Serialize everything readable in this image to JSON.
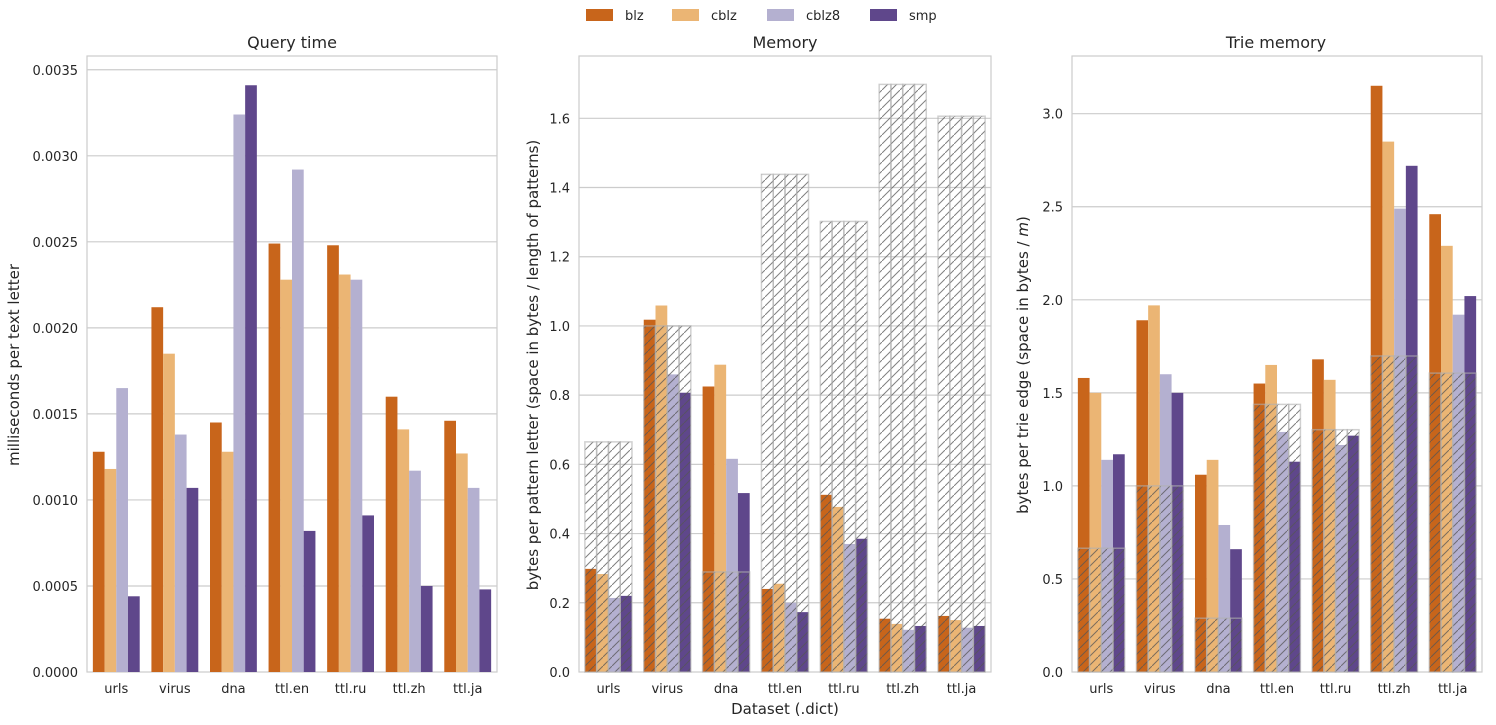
{
  "legend": {
    "items": [
      {
        "name": "blz",
        "color": "#c8651b"
      },
      {
        "name": "cblz",
        "color": "#ebb574"
      },
      {
        "name": "cblz8",
        "color": "#b4b0d0"
      },
      {
        "name": "smp",
        "color": "#5f478b"
      }
    ],
    "placement": "top-center"
  },
  "shared_xlabel": "Dataset (.dict)",
  "chart_data": [
    {
      "type": "bar",
      "title": "Query time",
      "xlabel": "",
      "ylabel": "milliseconds per text letter",
      "categories": [
        "urls",
        "virus",
        "dna",
        "ttl.en",
        "ttl.ru",
        "ttl.zh",
        "ttl.ja"
      ],
      "ylim": [
        0,
        0.00358
      ],
      "yticks": [
        0.0,
        0.0005,
        0.001,
        0.0015,
        0.002,
        0.0025,
        0.003,
        0.0035
      ],
      "ytick_labels": [
        "0.0000",
        "0.0005",
        "0.0010",
        "0.0015",
        "0.0020",
        "0.0025",
        "0.0030",
        "0.0035"
      ],
      "grid": true,
      "series": [
        {
          "name": "blz",
          "values": [
            0.00128,
            0.00212,
            0.00145,
            0.00249,
            0.00248,
            0.0016,
            0.00146
          ]
        },
        {
          "name": "cblz",
          "values": [
            0.00118,
            0.00185,
            0.00128,
            0.00228,
            0.00231,
            0.00141,
            0.00127
          ]
        },
        {
          "name": "cblz8",
          "values": [
            0.00165,
            0.00138,
            0.00324,
            0.00292,
            0.00228,
            0.00117,
            0.00107
          ]
        },
        {
          "name": "smp",
          "values": [
            0.00044,
            0.00107,
            0.00341,
            0.00082,
            0.00091,
            0.0005,
            0.00048
          ]
        }
      ]
    },
    {
      "type": "bar",
      "title": "Memory",
      "xlabel": "Dataset (.dict)",
      "ylabel": "bytes per pattern letter (space in bytes / length of patterns)",
      "categories": [
        "urls",
        "virus",
        "dna",
        "ttl.en",
        "ttl.ru",
        "ttl.zh",
        "ttl.ja"
      ],
      "ylim": [
        0,
        1.78
      ],
      "yticks": [
        0.0,
        0.2,
        0.4,
        0.6,
        0.8,
        1.0,
        1.2,
        1.4,
        1.6
      ],
      "ytick_labels": [
        "0.0",
        "0.2",
        "0.4",
        "0.6",
        "0.8",
        "1.0",
        "1.2",
        "1.4",
        "1.6"
      ],
      "grid": true,
      "hatched_reference": {
        "name": "uncompressed",
        "values": [
          0.665,
          1.0,
          0.289,
          1.438,
          1.302,
          1.698,
          1.606
        ]
      },
      "series": [
        {
          "name": "blz",
          "values": [
            0.298,
            1.018,
            0.825,
            0.24,
            0.512,
            0.154,
            0.162
          ]
        },
        {
          "name": "cblz",
          "values": [
            0.283,
            1.059,
            0.888,
            0.255,
            0.477,
            0.139,
            0.15
          ]
        },
        {
          "name": "cblz8",
          "values": [
            0.214,
            0.86,
            0.616,
            0.2,
            0.37,
            0.122,
            0.128
          ]
        },
        {
          "name": "smp",
          "values": [
            0.22,
            0.807,
            0.517,
            0.173,
            0.385,
            0.133,
            0.133
          ]
        }
      ]
    },
    {
      "type": "bar",
      "title": "Trie memory",
      "xlabel": "",
      "ylabel": "bytes per trie edge (space in bytes / m)",
      "ylabel_parts": [
        "bytes per trie edge (space in bytes / ",
        "m",
        ")"
      ],
      "categories": [
        "urls",
        "virus",
        "dna",
        "ttl.en",
        "ttl.ru",
        "ttl.zh",
        "ttl.ja"
      ],
      "ylim": [
        0,
        3.31
      ],
      "yticks": [
        0.0,
        0.5,
        1.0,
        1.5,
        2.0,
        2.5,
        3.0
      ],
      "ytick_labels": [
        "0.0",
        "0.5",
        "1.0",
        "1.5",
        "2.0",
        "2.5",
        "3.0"
      ],
      "grid": true,
      "hatched_reference": {
        "name": "uncompressed",
        "values": [
          0.665,
          1.0,
          0.289,
          1.438,
          1.302,
          1.698,
          1.606
        ]
      },
      "series": [
        {
          "name": "blz",
          "values": [
            1.58,
            1.89,
            1.06,
            1.55,
            1.68,
            3.15,
            2.46
          ]
        },
        {
          "name": "cblz",
          "values": [
            1.5,
            1.97,
            1.14,
            1.65,
            1.57,
            2.85,
            2.29
          ]
        },
        {
          "name": "cblz8",
          "values": [
            1.14,
            1.6,
            0.79,
            1.29,
            1.22,
            2.49,
            1.92
          ]
        },
        {
          "name": "smp",
          "values": [
            1.17,
            1.5,
            0.66,
            1.13,
            1.27,
            2.72,
            2.02
          ]
        }
      ]
    }
  ]
}
